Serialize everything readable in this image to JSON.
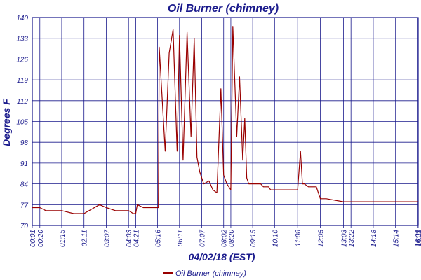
{
  "chart_data": {
    "type": "line",
    "title": "Oil Burner (chimney)",
    "xlabel": "04/02/18 (EST)",
    "ylabel": "Degrees F",
    "ylim": [
      70,
      140
    ],
    "yticks": [
      "70",
      "77",
      "84",
      "91",
      "98",
      "105",
      "112",
      "119",
      "126",
      "133",
      "140"
    ],
    "grid": true,
    "legend_position": "bottom-left",
    "x_start": "00:01",
    "x_end": "16:11",
    "xticks": [
      "00:01",
      "00:20",
      "01:15",
      "02:11",
      "03:07",
      "04:03",
      "04:21",
      "05:16",
      "06:11",
      "07:07",
      "08:02",
      "08:20",
      "09:15",
      "10:10",
      "11:08",
      "12:05",
      "13:03",
      "13:22",
      "14:18",
      "15:14",
      "16:09",
      "16:11"
    ],
    "series": [
      {
        "name": "Oil Burner (chimney)",
        "color": "#990000",
        "x": [
          "00:01",
          "00:20",
          "00:35",
          "01:15",
          "01:45",
          "02:11",
          "02:50",
          "03:07",
          "03:30",
          "04:03",
          "04:15",
          "04:21",
          "04:25",
          "04:40",
          "05:16",
          "05:18",
          "05:20",
          "05:35",
          "05:45",
          "05:55",
          "06:05",
          "06:11",
          "06:20",
          "06:30",
          "06:40",
          "06:48",
          "06:55",
          "07:02",
          "07:07",
          "07:12",
          "07:25",
          "07:35",
          "07:45",
          "07:55",
          "08:02",
          "08:10",
          "08:20",
          "08:25",
          "08:35",
          "08:42",
          "08:50",
          "08:55",
          "09:00",
          "09:05",
          "09:15",
          "09:25",
          "09:35",
          "09:42",
          "09:50",
          "09:55",
          "10:00",
          "10:10",
          "10:20",
          "10:30",
          "10:40",
          "10:48",
          "10:55",
          "11:08",
          "11:15",
          "11:20",
          "11:25",
          "11:35",
          "11:45",
          "11:55",
          "12:05",
          "12:20",
          "13:03",
          "13:15",
          "13:20",
          "13:22",
          "13:30",
          "13:40",
          "14:00",
          "14:18",
          "14:25",
          "14:40",
          "15:14",
          "15:40",
          "16:09",
          "16:11"
        ],
        "values": [
          76,
          76,
          75,
          75,
          74,
          74,
          77,
          76,
          75,
          75,
          74,
          74,
          77,
          76,
          76,
          76,
          130,
          95,
          128,
          136,
          95,
          134,
          92,
          135,
          100,
          133,
          93,
          88,
          86,
          84,
          85,
          82,
          81,
          116,
          87,
          84,
          82,
          137,
          100,
          120,
          92,
          106,
          86,
          84,
          84,
          84,
          84,
          83,
          83,
          83,
          82,
          82,
          82,
          82,
          82,
          82,
          82,
          82,
          95,
          84,
          84,
          83,
          83,
          83,
          79,
          79,
          78,
          78,
          78,
          78,
          78,
          78,
          78,
          78,
          78,
          78,
          78,
          78,
          78,
          78
        ]
      }
    ]
  }
}
